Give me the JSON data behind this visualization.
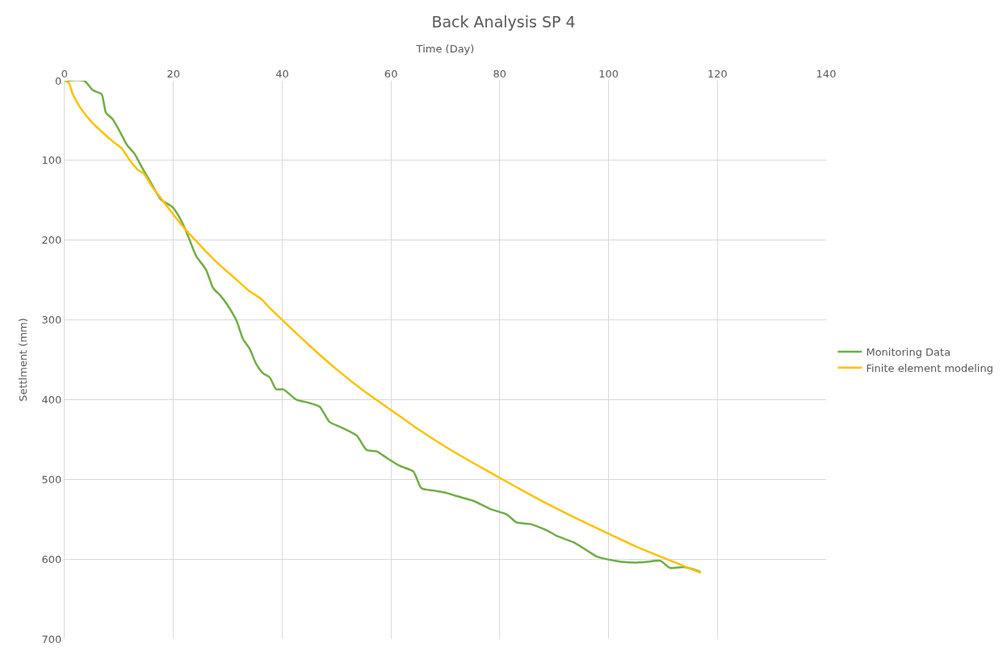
{
  "chart_data": {
    "type": "line",
    "title": "Back Analysis SP 4",
    "xlabel": "Time (Day)",
    "ylabel": "Settlment (mm)",
    "xlim": [
      0,
      140
    ],
    "xticks": [
      0,
      20,
      40,
      60,
      80,
      100,
      120,
      140
    ],
    "ylim": [
      700,
      0
    ],
    "yticks": [
      0,
      100,
      200,
      300,
      400,
      500,
      600,
      700
    ],
    "grid": true,
    "legend": "right",
    "marker": "none",
    "line_style": "solid",
    "series": [
      {
        "name": "Monitoring Data",
        "color": "#70ad47",
        "x": [
          0,
          3.6,
          5.2,
          6.8,
          7.6,
          8.8,
          10.1,
          11.5,
          12.8,
          14.4,
          16.2,
          17.7,
          19.9,
          21.7,
          23,
          24.2,
          26,
          27.3,
          28.7,
          29.9,
          31.6,
          32.8,
          34,
          35.2,
          36.5,
          37.7,
          38.9,
          40.2,
          42.6,
          44.9,
          46.9,
          48.7,
          50.6,
          53.7,
          55.5,
          57.4,
          59.2,
          61.6,
          64.1,
          65.6,
          67.8,
          70.2,
          72.1,
          75.2,
          78.2,
          81.3,
          83.1,
          85.6,
          88.7,
          90.5,
          93.6,
          96,
          97.9,
          100.3,
          103.4,
          106.4,
          109.5,
          111.3,
          113.8,
          115.7,
          116.9
        ],
        "values": [
          0,
          0,
          12,
          17,
          40,
          48,
          63,
          81,
          91,
          111,
          132,
          149,
          159,
          179,
          200,
          220,
          237,
          260,
          270,
          281,
          301,
          324,
          336,
          355,
          367,
          372,
          387,
          387,
          400,
          404,
          409,
          428,
          434,
          445,
          463,
          465,
          473,
          483,
          490,
          511,
          514,
          517,
          521,
          527,
          537,
          544,
          554,
          556,
          564,
          571,
          579,
          589,
          597,
          601,
          604,
          604,
          602,
          611,
          610,
          613,
          616
        ]
      },
      {
        "name": "Finite element modeling",
        "color": "#ffc000",
        "x": [
          0,
          0.8,
          1.5,
          3,
          5,
          7,
          9,
          10.5,
          12,
          13.5,
          14.5,
          16,
          18,
          20,
          22,
          25,
          28,
          31,
          34,
          36,
          38,
          40,
          45,
          50,
          55,
          60,
          65,
          70,
          75,
          80,
          85,
          90,
          95,
          100,
          105,
          110,
          115,
          117
        ],
        "values": [
          0,
          3,
          17,
          35,
          52,
          65,
          77,
          85,
          100,
          112,
          116,
          132,
          150,
          168,
          185,
          207,
          228,
          246,
          264,
          273,
          287,
          300,
          332,
          362,
          389,
          413,
          437,
          459,
          479,
          498,
          517,
          535,
          552,
          568,
          584,
          598,
          612,
          617
        ]
      }
    ]
  }
}
